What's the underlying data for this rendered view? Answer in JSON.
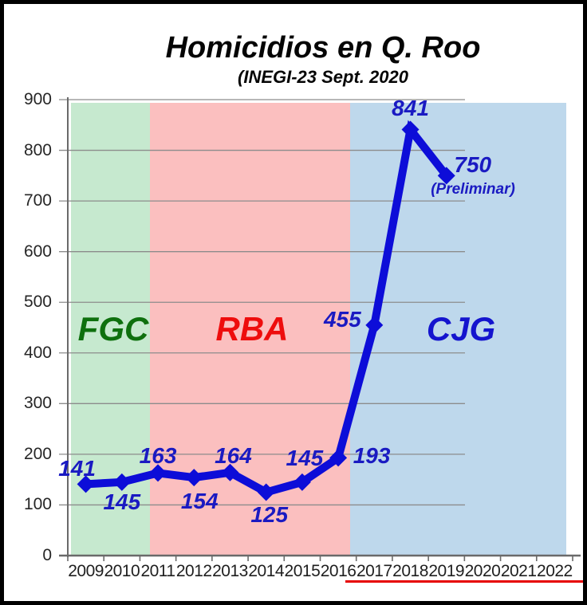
{
  "header": {
    "title": "Homicidios en Q. Roo",
    "subtitle": "(INEGI-23 Sept. 2020"
  },
  "chart_data": {
    "type": "line",
    "title": "Homicidios en Q. Roo",
    "subtitle": "(INEGI-23 Sept. 2020",
    "categories": [
      "2009",
      "2010",
      "2011",
      "2012",
      "2013",
      "2014",
      "2015",
      "2016",
      "2017",
      "2018",
      "2019",
      "2020",
      "2021",
      "2022"
    ],
    "series": [
      {
        "name": "Homicidios",
        "years": [
          "2009",
          "2010",
          "2011",
          "2012",
          "2013",
          "2014",
          "2015",
          "2016",
          "2017",
          "2018",
          "2019"
        ],
        "values": [
          141,
          145,
          163,
          154,
          164,
          125,
          145,
          193,
          455,
          841,
          750
        ],
        "color": "#0d0dd8",
        "marker": "diamond"
      }
    ],
    "ylim": [
      0,
      900
    ],
    "y_ticks": [
      0,
      100,
      200,
      300,
      400,
      500,
      600,
      700,
      800,
      900
    ],
    "grid": "horizontal",
    "legend": "none",
    "background_bands": [
      {
        "label": "FGC",
        "from": "2009",
        "to": "2010",
        "color": "#c6e9cf",
        "label_color": "#0e700e"
      },
      {
        "label": "RBA",
        "from": "2011",
        "to": "2016",
        "color": "#fbbfbf",
        "label_color": "#ee0d0d"
      },
      {
        "label": "CJG",
        "from": "2016",
        "to": "2022",
        "color": "#bed8ec",
        "label_color": "#1414ce"
      }
    ],
    "annotations": [
      {
        "text": "(Preliminar)",
        "attached_to": "2019",
        "color": "#1a1ac2"
      }
    ],
    "colors": {
      "data_label": "#1a1ac2",
      "axis": "#6a6a6a",
      "gridline": "#8c8c8c",
      "tick_label": "#262626",
      "red_underline": "#e60000",
      "frame": "#000000"
    }
  }
}
